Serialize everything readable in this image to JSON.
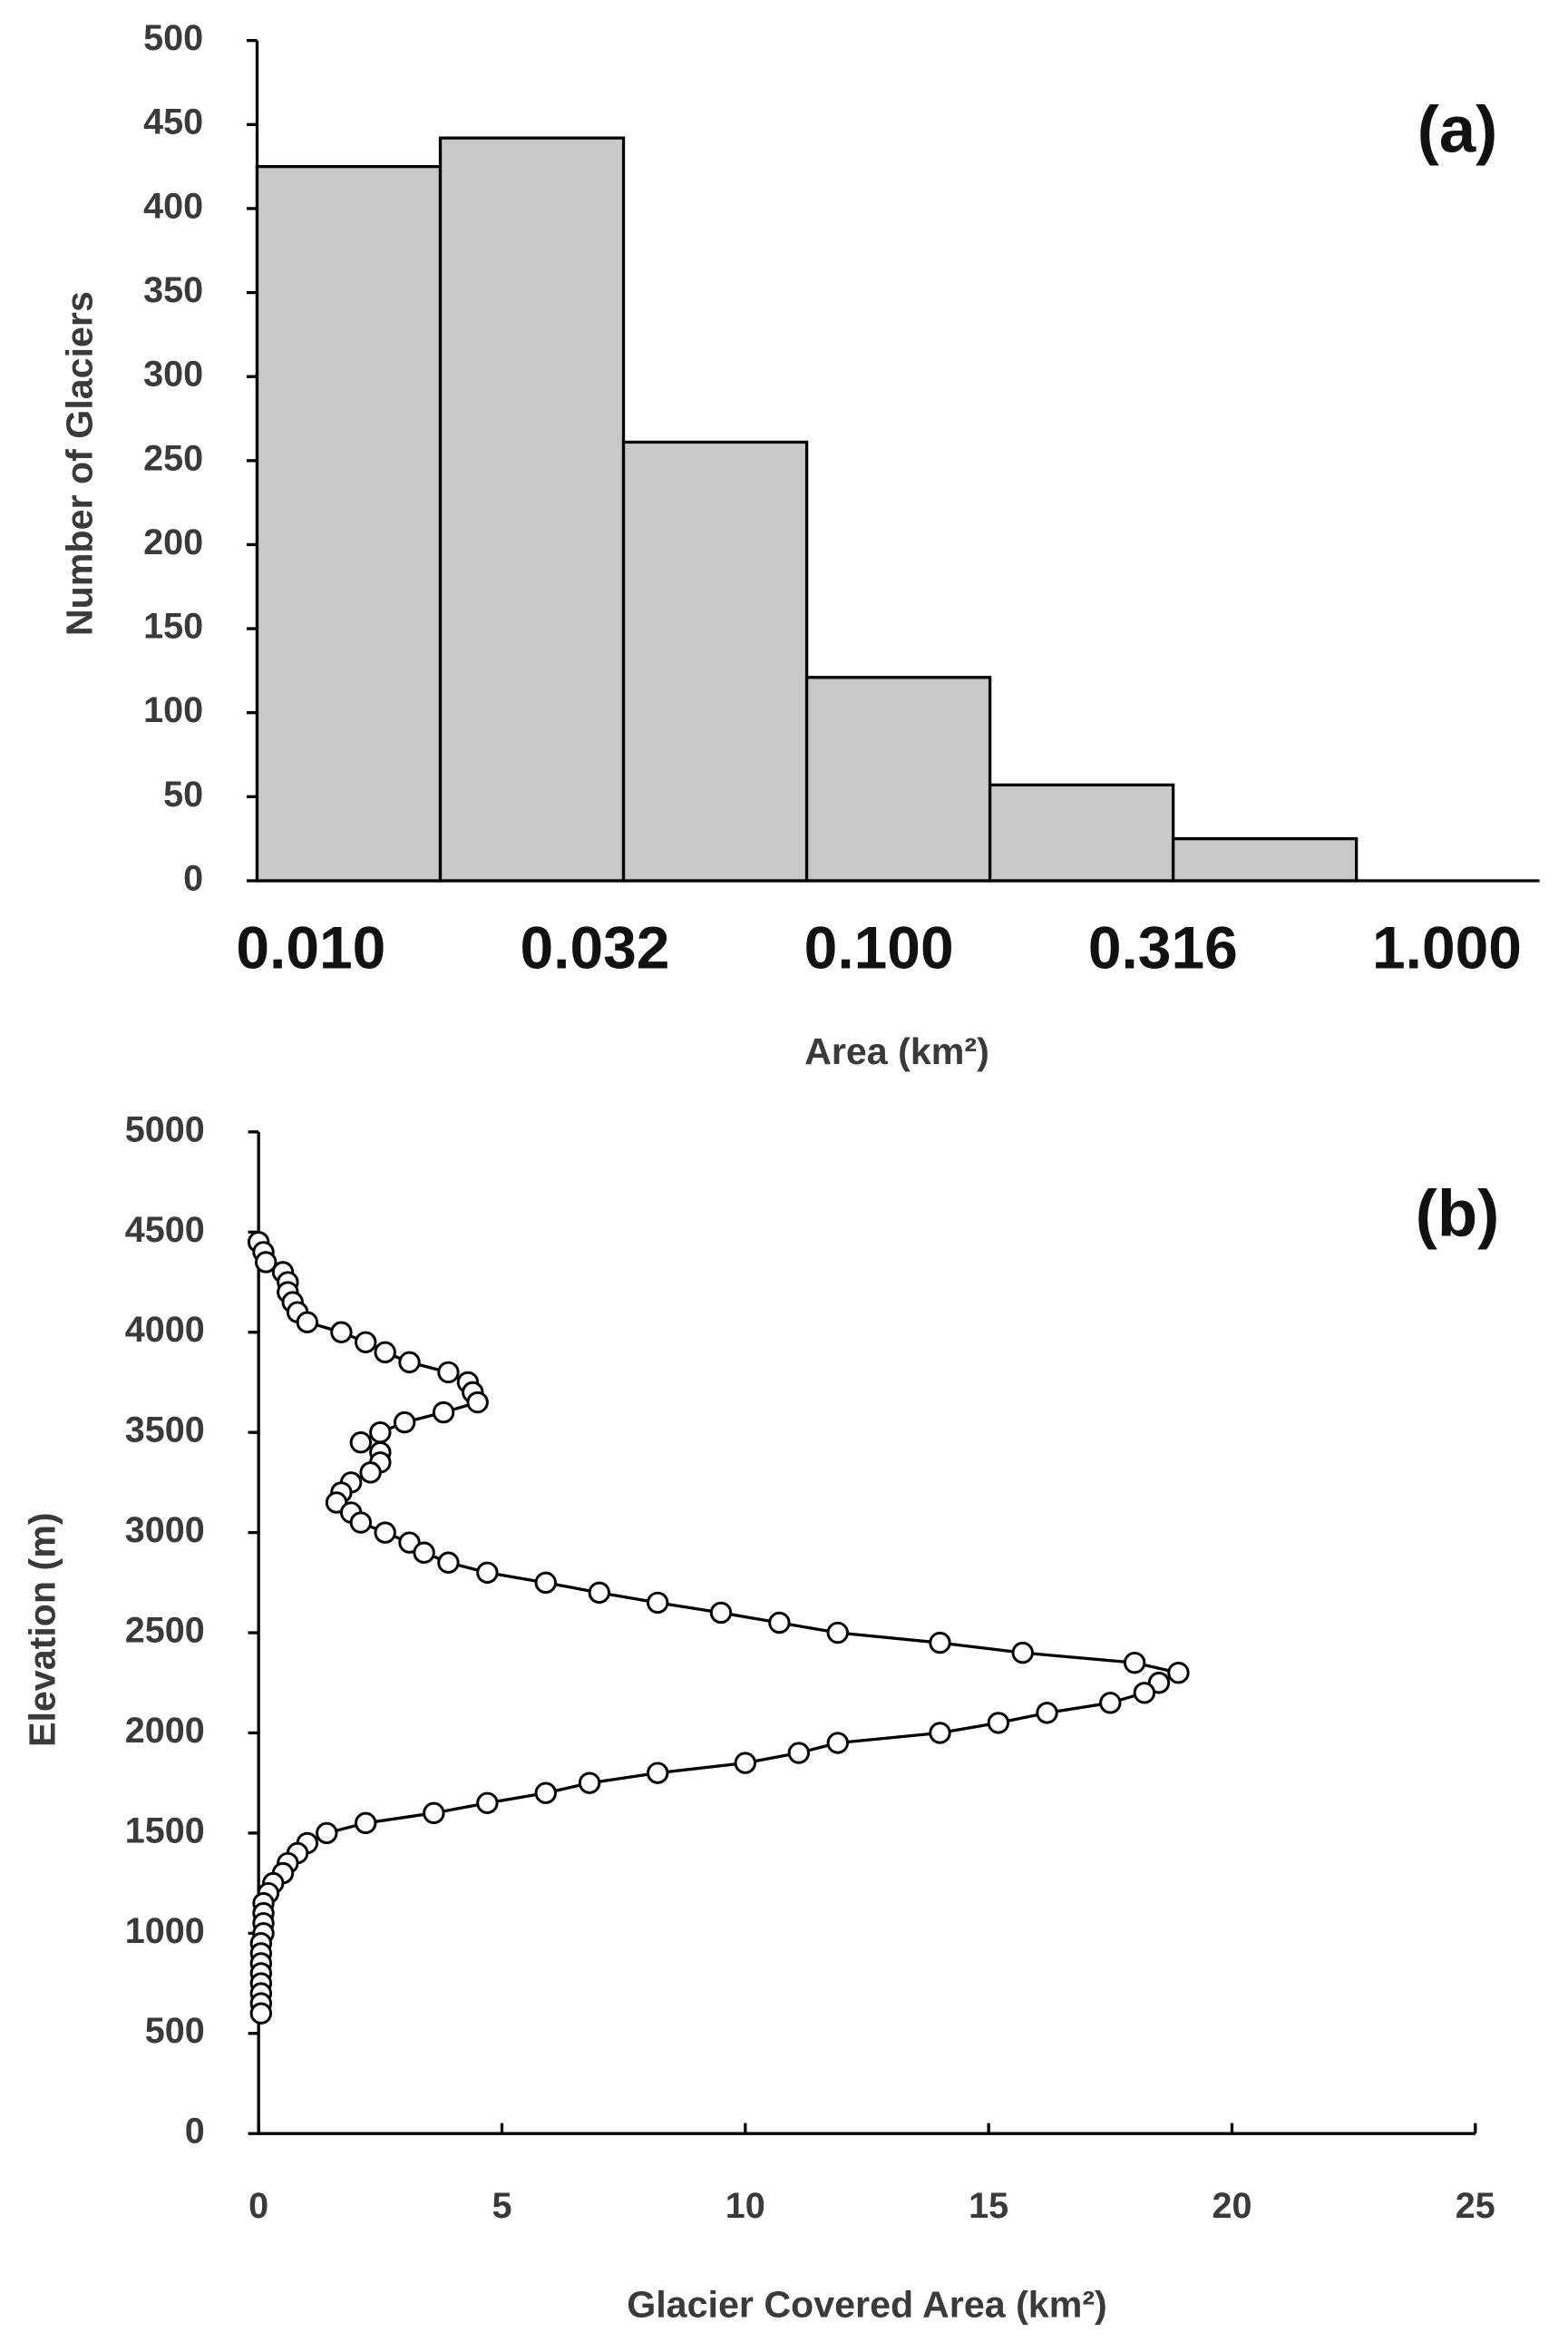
{
  "chart_data": [
    {
      "type": "histogram",
      "panel_label": "(a)",
      "xlabel": "Area (km²)",
      "ylabel": "Number of Glaciers",
      "xtick_labels": [
        "0.010",
        "0.032",
        "0.100",
        "0.316",
        "1.000"
      ],
      "counts": [
        425,
        442,
        261,
        121,
        57,
        25
      ],
      "color": "#c8c8c8",
      "ylim": [
        0,
        500
      ],
      "yticks": [
        0,
        50,
        100,
        150,
        200,
        250,
        300,
        350,
        400,
        450,
        500
      ]
    },
    {
      "type": "scatter",
      "panel_label": "(b)",
      "xlabel": "Glacier Covered Area (km²)",
      "ylabel": "Elevation (m)",
      "x": [
        0.0,
        0.1,
        0.15,
        0.5,
        0.6,
        0.6,
        0.7,
        0.8,
        1.0,
        1.7,
        2.2,
        2.6,
        3.1,
        3.9,
        4.3,
        4.4,
        4.5,
        3.8,
        3.0,
        2.5,
        2.1,
        2.5,
        2.5,
        2.3,
        1.9,
        1.7,
        1.6,
        1.9,
        2.1,
        2.6,
        3.1,
        3.4,
        3.9,
        4.7,
        5.9,
        7.0,
        8.2,
        9.5,
        10.7,
        11.9,
        14.0,
        15.7,
        18.0,
        18.9,
        18.5,
        18.2,
        17.5,
        16.2,
        15.2,
        14.0,
        11.9,
        11.1,
        10.0,
        8.2,
        6.8,
        5.9,
        4.7,
        3.6,
        2.2,
        1.4,
        1.0,
        0.8,
        0.6,
        0.5,
        0.3,
        0.2,
        0.1,
        0.1,
        0.1,
        0.1,
        0.05,
        0.05,
        0.05,
        0.05,
        0.05,
        0.05,
        0.05,
        0.05
      ],
      "values": [
        4450,
        4400,
        4350,
        4300,
        4250,
        4200,
        4150,
        4100,
        4050,
        4000,
        3950,
        3900,
        3850,
        3800,
        3750,
        3700,
        3650,
        3600,
        3550,
        3500,
        3450,
        3400,
        3350,
        3300,
        3250,
        3200,
        3150,
        3100,
        3050,
        3000,
        2950,
        2900,
        2850,
        2800,
        2750,
        2700,
        2650,
        2600,
        2550,
        2500,
        2450,
        2400,
        2350,
        2300,
        2250,
        2200,
        2150,
        2100,
        2050,
        2000,
        1950,
        1900,
        1850,
        1800,
        1750,
        1700,
        1650,
        1600,
        1550,
        1500,
        1450,
        1400,
        1350,
        1300,
        1250,
        1200,
        1150,
        1100,
        1050,
        1000,
        950,
        900,
        850,
        800,
        750,
        700,
        650,
        600
      ],
      "xlim": [
        0,
        25
      ],
      "xticks": [
        0,
        5,
        10,
        15,
        20,
        25
      ],
      "ylim": [
        0,
        5000
      ],
      "yticks": [
        0,
        500,
        1000,
        1500,
        2000,
        2500,
        3000,
        3500,
        4000,
        4500,
        5000
      ]
    }
  ]
}
